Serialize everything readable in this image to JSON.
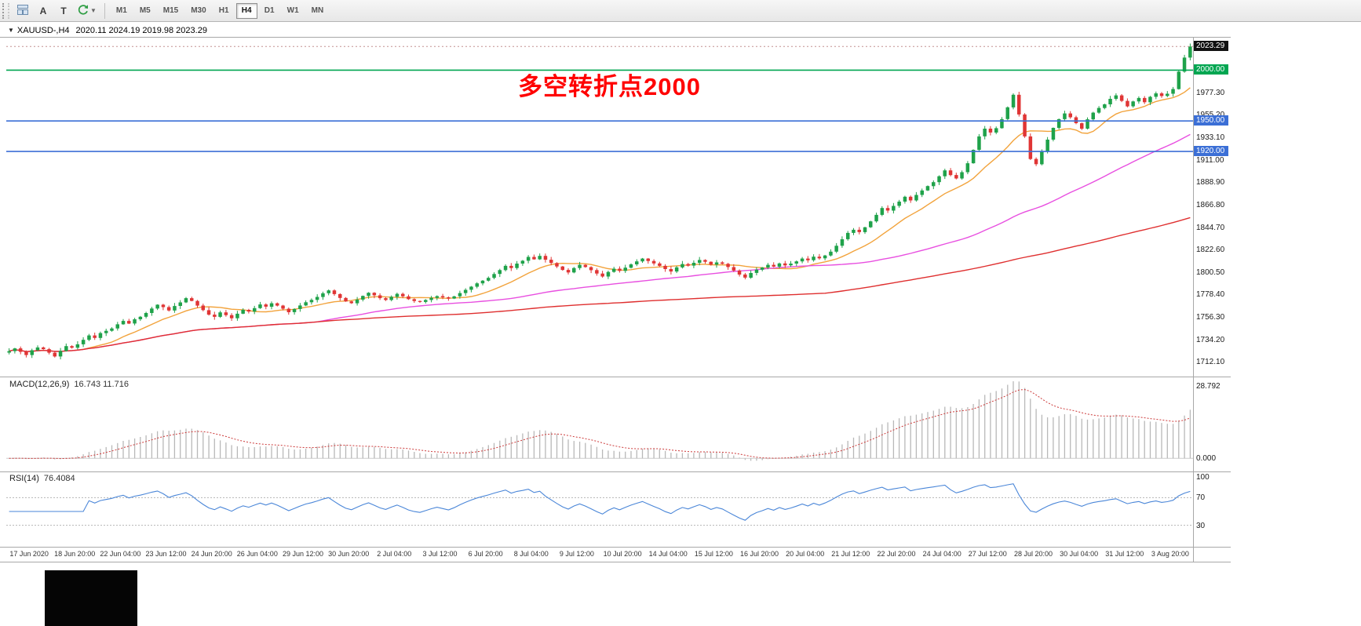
{
  "toolbar": {
    "a_label": "A",
    "t_label": "T",
    "timeframes": [
      "M1",
      "M5",
      "M15",
      "M30",
      "H1",
      "H4",
      "D1",
      "W1",
      "MN"
    ],
    "active_timeframe": "H4"
  },
  "chart": {
    "symbol_tf": "XAUUSD-,H4",
    "ohlc_text": "2020.11 2024.19 2019.98 2023.29",
    "annotation_text": "多空转折点2000"
  },
  "macd_panel": {
    "name": "MACD(12,26,9)",
    "values": "16.743 11.716"
  },
  "rsi_panel": {
    "name": "RSI(14)",
    "value": "76.4084"
  },
  "chart_data": {
    "type": "candlestick",
    "symbol": "XAUUSD",
    "timeframe": "H4",
    "ohlc_current": {
      "open": 2020.11,
      "high": 2024.19,
      "low": 2019.98,
      "close": 2023.29
    },
    "ylim": [
      1700,
      2032
    ],
    "closes": [
      1723.5,
      1726.2,
      1722.8,
      1719.6,
      1724.3,
      1727.1,
      1725.4,
      1721.9,
      1718.2,
      1723.6,
      1728.4,
      1726.8,
      1730.2,
      1734.6,
      1738.9,
      1736.4,
      1741.2,
      1743.5,
      1745.8,
      1749.9,
      1753.2,
      1750.6,
      1754.8,
      1757.3,
      1761.0,
      1765.4,
      1769.2,
      1766.8,
      1763.5,
      1767.9,
      1771.4,
      1775.6,
      1772.9,
      1768.3,
      1763.8,
      1759.4,
      1757.2,
      1761.6,
      1758.9,
      1755.8,
      1760.3,
      1764.1,
      1762.4,
      1765.8,
      1769.4,
      1767.2,
      1770.6,
      1768.3,
      1765.2,
      1761.8,
      1764.9,
      1768.4,
      1771.6,
      1773.9,
      1776.8,
      1780.4,
      1783.2,
      1779.6,
      1775.8,
      1772.4,
      1770.6,
      1774.2,
      1777.8,
      1780.9,
      1778.4,
      1775.6,
      1773.8,
      1776.9,
      1779.8,
      1777.4,
      1774.6,
      1772.8,
      1771.9,
      1773.8,
      1775.9,
      1777.6,
      1776.4,
      1775.2,
      1777.4,
      1780.6,
      1783.8,
      1786.9,
      1790.2,
      1792.8,
      1795.6,
      1799.4,
      1803.2,
      1807.4,
      1805.2,
      1809.6,
      1812.4,
      1816.2,
      1813.8,
      1817.2,
      1813.4,
      1810.2,
      1806.8,
      1803.4,
      1800.9,
      1805.2,
      1808.4,
      1806.2,
      1803.2,
      1799.8,
      1796.9,
      1801.4,
      1804.6,
      1802.4,
      1805.6,
      1808.9,
      1811.8,
      1814.6,
      1812.2,
      1809.8,
      1807.4,
      1804.2,
      1801.8,
      1805.9,
      1809.2,
      1807.6,
      1810.4,
      1813.2,
      1811.4,
      1808.6,
      1810.8,
      1809.4,
      1806.2,
      1802.8,
      1798.9,
      1795.8,
      1800.4,
      1803.6,
      1805.8,
      1808.4,
      1806.6,
      1809.8,
      1807.9,
      1809.6,
      1811.8,
      1814.6,
      1812.9,
      1816.4,
      1814.8,
      1817.6,
      1821.4,
      1827.2,
      1833.6,
      1839.8,
      1842.9,
      1840.6,
      1845.4,
      1851.2,
      1857.6,
      1864.3,
      1861.8,
      1866.4,
      1870.6,
      1875.4,
      1871.8,
      1877.2,
      1881.6,
      1885.9,
      1889.8,
      1895.6,
      1901.4,
      1896.8,
      1893.4,
      1899.6,
      1908.4,
      1921.6,
      1934.8,
      1942.4,
      1938.6,
      1942.9,
      1951.8,
      1963.4,
      1975.8,
      1956.4,
      1934.8,
      1912.6,
      1907.4,
      1919.8,
      1931.6,
      1943.2,
      1951.8,
      1957.4,
      1953.6,
      1947.8,
      1942.4,
      1951.6,
      1958.2,
      1962.8,
      1966.4,
      1971.8,
      1975.2,
      1969.8,
      1964.4,
      1969.2,
      1972.6,
      1968.4,
      1973.8,
      1977.2,
      1974.6,
      1976.8,
      1981.4,
      1998.6,
      2012.4,
      2023.29
    ],
    "price_ticks": [
      "1977.30",
      "1955.20",
      "1933.10",
      "1911.00",
      "1888.90",
      "1866.80",
      "1844.70",
      "1822.60",
      "1800.50",
      "1778.40",
      "1756.30",
      "1734.20",
      "1712.10"
    ],
    "current_price": {
      "value": 2023.29,
      "label": "2023.29"
    },
    "hlines": [
      {
        "price": 2000.0,
        "label": "2000.00",
        "color": "#00a651"
      },
      {
        "price": 1950.0,
        "label": "1950.00",
        "color": "#3b6fd6"
      },
      {
        "price": 1920.0,
        "label": "1920.00",
        "color": "#3b6fd6"
      }
    ],
    "moving_averages": [
      {
        "period": 12,
        "color": "#f2a33c"
      },
      {
        "period": 55,
        "color": "#e84fe0"
      },
      {
        "period": 144,
        "color": "#df2f2f"
      }
    ],
    "colors": {
      "up": "#1fa24a",
      "down": "#e03535",
      "macd_hist": "#b8b8b8",
      "macd_signal": "#cc3a3a",
      "rsi": "#4a86d8"
    },
    "macd": {
      "params": [
        12,
        26,
        9
      ],
      "axis_max": 28.792,
      "axis_min": -4,
      "max_label": "28.792",
      "zero_label": "0.000"
    },
    "rsi": {
      "period": 14,
      "levels": [
        100,
        70,
        30
      ]
    },
    "x_labels": [
      "17 Jun 2020",
      "18 Jun 20:00",
      "22 Jun 04:00",
      "23 Jun 12:00",
      "24 Jun 20:00",
      "26 Jun 04:00",
      "29 Jun 12:00",
      "30 Jun 20:00",
      "2 Jul 04:00",
      "3 Jul 12:00",
      "6 Jul 20:00",
      "8 Jul 04:00",
      "9 Jul 12:00",
      "10 Jul 20:00",
      "14 Jul 04:00",
      "15 Jul 12:00",
      "16 Jul 20:00",
      "20 Jul 04:00",
      "21 Jul 12:00",
      "22 Jul 20:00",
      "24 Jul 04:00",
      "27 Jul 12:00",
      "28 Jul 20:00",
      "30 Jul 04:00",
      "31 Jul 12:00",
      "3 Aug 20:00"
    ]
  }
}
